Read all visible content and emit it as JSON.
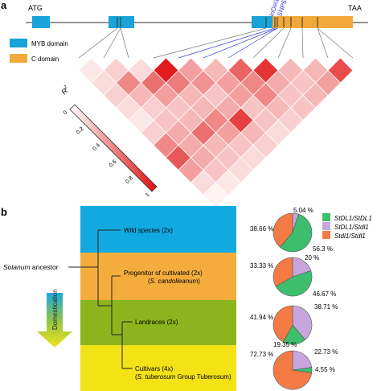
{
  "panel_a": {
    "label": "a",
    "gene": {
      "start_codon": "ATG",
      "stop_codon": "TAA"
    },
    "legend": [
      {
        "label": "MYB domain",
        "color": "#1aa3d8"
      },
      {
        "label": "C domain",
        "color": "#f2a93b"
      }
    ],
    "variants": [
      "InDel1",
      "SNP6"
    ],
    "colorbar": {
      "label": "R",
      "superscript": "2",
      "ticks": [
        "0",
        "0.2",
        "0.4",
        "0.6",
        "0.8",
        "1"
      ],
      "low_color": "#ffffff",
      "high_color": "#e01010"
    },
    "ld_matrix_r2": [
      [
        0.1,
        0.2,
        0.15,
        0.95,
        0.4,
        0.3,
        0.65,
        0.85,
        0.3,
        0.3,
        0.75
      ],
      [
        0.15,
        0.5,
        0.6,
        0.55,
        0.45,
        0.4,
        0.5,
        0.35,
        0.25,
        0.4
      ],
      [
        0.2,
        0.3,
        0.4,
        0.3,
        0.25,
        0.4,
        0.5,
        0.25,
        0.3
      ],
      [
        0.15,
        0.2,
        0.25,
        0.3,
        0.35,
        0.25,
        0.3,
        0.25
      ],
      [
        0.1,
        0.25,
        0.3,
        0.5,
        0.8,
        0.25,
        0.2
      ],
      [
        0.2,
        0.35,
        0.6,
        0.4,
        0.3,
        0.15
      ],
      [
        0.5,
        0.35,
        0.3,
        0.25,
        0.2
      ],
      [
        0.7,
        0.35,
        0.25,
        0.15
      ],
      [
        0.4,
        0.25,
        0.15
      ],
      [
        0.15,
        0.1
      ],
      [
        0.05
      ]
    ]
  },
  "panel_b": {
    "label": "b",
    "ancestor": {
      "genus": "Solanum",
      "suffix": " ancestor"
    },
    "arrow_label": "Domestication",
    "bands": [
      {
        "name": "wild",
        "color": "#12a9e1"
      },
      {
        "name": "progenitor",
        "color": "#f4ad3d"
      },
      {
        "name": "landrace",
        "color": "#8cb41c"
      },
      {
        "name": "cultivar",
        "color": "#f3e216"
      }
    ],
    "groups": {
      "wild": {
        "line1": "Wild species (2x)"
      },
      "progenitor": {
        "line1": "Progenitor of cultivated (2x)",
        "line2_open": "(",
        "line2_species": "S. candolleanum",
        "line2_close": ")"
      },
      "landrace": {
        "line1": "Landraces (2x)"
      },
      "cultivar": {
        "line1": "Cultivars (4x)",
        "line2_open": "(",
        "line2_species": "S. tuberosum",
        "line2_close": " Group Tuberosum)"
      }
    },
    "pie_legend": [
      {
        "label": "StDL1/StDL1",
        "color": "#3dbe6e"
      },
      {
        "label": "StDL1/Stdl1",
        "color": "#c6a6dc"
      },
      {
        "label": "Stdl1/Stdl1",
        "color": "#f47a45"
      }
    ],
    "pies": [
      {
        "name": "wild",
        "values": [
          56.3,
          5.04,
          38.66
        ],
        "labels": [
          "56.3 %",
          "5.04 %",
          "38.66 %"
        ]
      },
      {
        "name": "progenitor",
        "values": [
          46.67,
          20,
          33.33
        ],
        "labels": [
          "46.67 %",
          "20 %",
          "33.33 %"
        ]
      },
      {
        "name": "landrace",
        "values": [
          19.35,
          38.71,
          41.94
        ],
        "labels": [
          "19.35 %",
          "38.71 %",
          "41.94 %"
        ]
      },
      {
        "name": "cultivar",
        "values": [
          4.55,
          22.73,
          72.73
        ],
        "labels": [
          "4.55 %",
          "22.73 %",
          "72.73 %"
        ]
      }
    ]
  }
}
